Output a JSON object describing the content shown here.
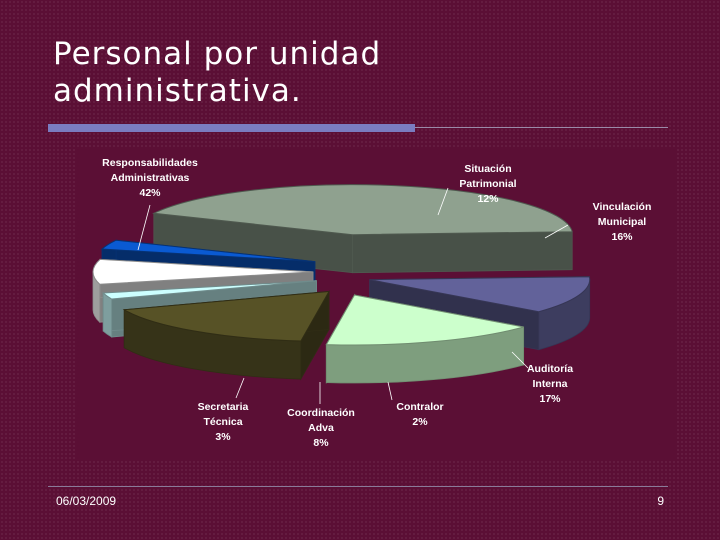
{
  "slide": {
    "title_line1": "Personal por unidad",
    "title_line2": "administrativa.",
    "date": "06/03/2009",
    "page_number": "9"
  },
  "colors": {
    "background": "#5b0f35",
    "title_bar": "#7a7cc0"
  },
  "chart_data": {
    "type": "pie",
    "title": "",
    "style": "3d-exploded",
    "slices": [
      {
        "name": "Situación Patrimonial",
        "percent": 12,
        "percent_label": "12%",
        "color": "#62629a"
      },
      {
        "name": "Vinculación Municipal",
        "percent": 16,
        "percent_label": "16%",
        "color": "#ccffcc"
      },
      {
        "name": "Auditoría Interna",
        "percent": 17,
        "percent_label": "17%",
        "color": "#575226"
      },
      {
        "name": "Contralor",
        "percent": 2,
        "percent_label": "2%",
        "color": "#ccffff"
      },
      {
        "name": "Coordinación Adva",
        "percent": 8,
        "percent_label": "8%",
        "color": "#ffffff"
      },
      {
        "name": "Secretaria Técnica",
        "percent": 3,
        "percent_label": "3%",
        "color": "#0a5ad2"
      },
      {
        "name": "Responsabilidades Administrativas",
        "percent": 42,
        "percent_label": "42%",
        "color": "#8fa18f"
      }
    ],
    "labels": [
      {
        "line1": "Situación",
        "line2": "Patrimonial"
      },
      {
        "line1": "Vinculación",
        "line2": "Municipal"
      },
      {
        "line1": "Auditoría",
        "line2": "Interna"
      },
      {
        "line1": "Contralor",
        "line2": ""
      },
      {
        "line1": "Coordinación",
        "line2": "Adva"
      },
      {
        "line1": "Secretaria",
        "line2": "Técnica"
      },
      {
        "line1": "Responsabilidades",
        "line2": "Administrativas"
      }
    ]
  }
}
